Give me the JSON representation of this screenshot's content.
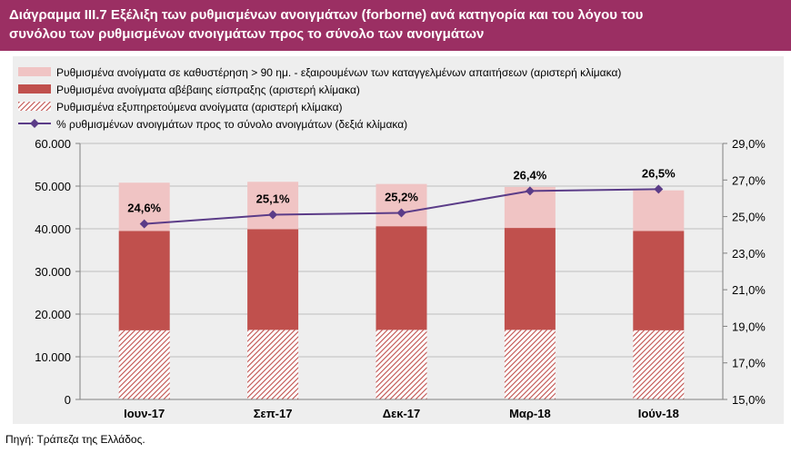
{
  "title": {
    "line1": "Διάγραμμα ΙΙΙ.7 Εξέλιξη των ρυθμισμένων ανοιγμάτων (forborne) ανά κατηγορία και του λόγου του",
    "line2": "συνόλου των ρυθμισμένων ανοιγμάτων προς το σύνολο των ανοιγμάτων"
  },
  "source": "Πηγή: Τράπεζα της Ελλάδος.",
  "colors": {
    "title_bg": "#9b2f63",
    "overdue": "#f0c4c4",
    "uncertain": "#c0504d",
    "performing_hatch": "#c0504d",
    "ratio_line": "#5b3c88",
    "plot_bg": "#eeeeee"
  },
  "chart_data": {
    "type": "bar",
    "stacked": true,
    "categories": [
      "Ιουν-17",
      "Σεπ-17",
      "Δεκ-17",
      "Μαρ-18",
      "Ιούν-18"
    ],
    "series": [
      {
        "name": "Ρυθμισμένα εξυπηρετούμενα ανοίγματα (αριστερή κλίμακα)",
        "axis": "left",
        "pattern": "hatch",
        "values": [
          16200,
          16300,
          16300,
          16300,
          16200
        ]
      },
      {
        "name": "Ρυθμισμένα ανοίγματα αβέβαιης είσπραξης (αριστερή κλίμακα)",
        "axis": "left",
        "pattern": "solid",
        "values": [
          23300,
          23600,
          24300,
          23900,
          23300
        ]
      },
      {
        "name": "Ρυθμισμένα ανοίγματα σε καθυστέρηση > 90 ημ. - εξαιρουμένων των καταγγελμένων απαιτήσεων (αριστερή κλίμακα)",
        "axis": "left",
        "pattern": "solid",
        "values": [
          11300,
          11100,
          9900,
          9600,
          9500
        ]
      }
    ],
    "line_series": {
      "name": "% ρυθμισμένων ανοιγμάτων προς το σύνολο ανοιγμάτων (δεξιά κλίμακα)",
      "axis": "right",
      "values": [
        24.6,
        25.1,
        25.2,
        26.4,
        26.5
      ],
      "labels": [
        "24,6%",
        "25,1%",
        "25,2%",
        "26,4%",
        "26,5%"
      ]
    },
    "left_axis": {
      "min": 0,
      "max": 60000,
      "ticks": [
        "0",
        "10.000",
        "20.000",
        "30.000",
        "40.000",
        "50.000",
        "60.000"
      ]
    },
    "right_axis": {
      "min": 15,
      "max": 29,
      "ticks": [
        "15,0%",
        "17,0%",
        "19,0%",
        "21,0%",
        "23,0%",
        "25,0%",
        "27,0%",
        "29,0%"
      ]
    },
    "legend_order": [
      2,
      1,
      0,
      "line"
    ],
    "legend_position": "top",
    "grid": true
  }
}
